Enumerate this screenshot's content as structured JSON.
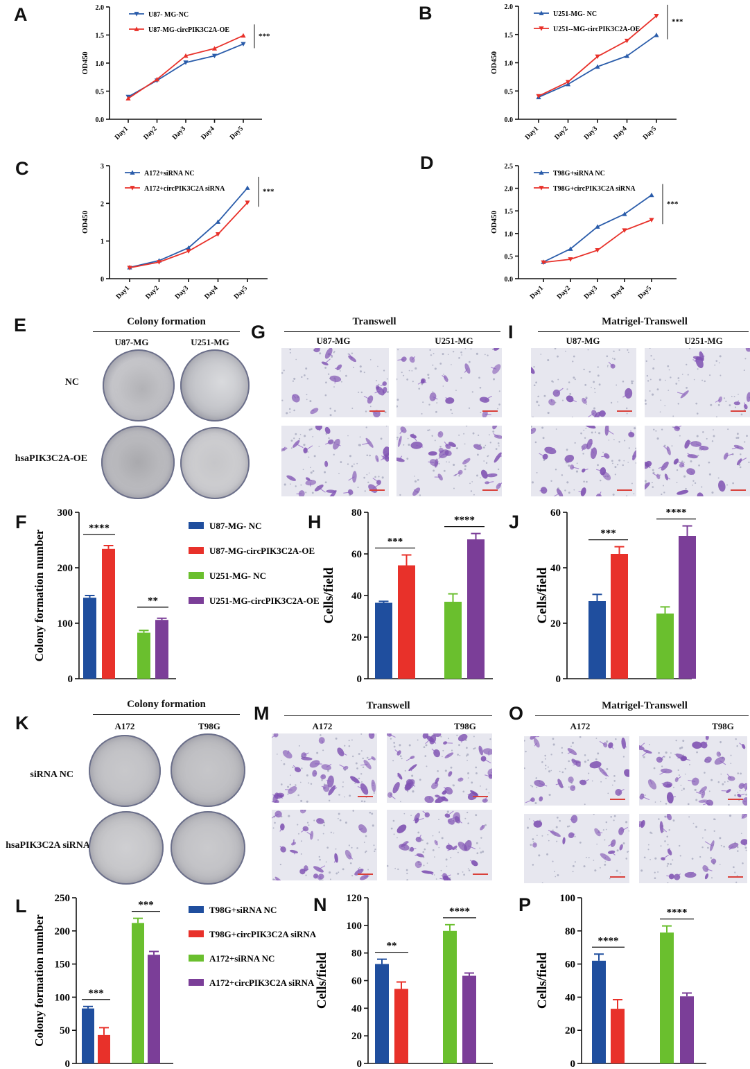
{
  "panel_letters": [
    "A",
    "B",
    "C",
    "D",
    "E",
    "F",
    "G",
    "H",
    "I",
    "J",
    "K",
    "L",
    "M",
    "N",
    "O",
    "P"
  ],
  "colors": {
    "blue": "#1f4e9e",
    "red": "#e8312a",
    "green": "#6abf2e",
    "purple": "#7b3e98",
    "line_blue": "#2a5caa",
    "line_red": "#e8312a",
    "dish": "#c4c4c8",
    "stain": "#7d4fb0"
  },
  "image_panels": {
    "E": {
      "title": "Colony formation",
      "cols": [
        "U87-MG",
        "U251-MG"
      ],
      "rows": [
        "NC",
        "hsaPIK3C2A-OE"
      ]
    },
    "G": {
      "title": "Transwell",
      "cols": [
        "U87-MG",
        "U251-MG"
      ]
    },
    "I": {
      "title": "Matrigel-Transwell",
      "cols": [
        "U87-MG",
        "U251-MG"
      ]
    },
    "K": {
      "title": "Colony formation",
      "cols": [
        "A172",
        "T98G"
      ],
      "rows": [
        "siRNA NC",
        "hsaPIK3C2A siRNA"
      ]
    },
    "M": {
      "title": "Transwell",
      "cols": [
        "A172",
        "T98G"
      ]
    },
    "O": {
      "title": "Matrigel-Transwell",
      "cols": [
        "A172",
        "T98G"
      ]
    }
  },
  "chart_data": [
    {
      "panel": "A",
      "type": "line",
      "x": [
        "Day1",
        "Day2",
        "Day3",
        "Day4",
        "Day5"
      ],
      "ylabel": "OD450",
      "ylim": [
        0,
        2.0
      ],
      "yticks": [
        "0.0",
        "0.5",
        "1.0",
        "1.5",
        "2.0"
      ],
      "significance": "***",
      "series": [
        {
          "name": "U87- MG-NC",
          "values": [
            0.4,
            0.69,
            1.01,
            1.13,
            1.34
          ],
          "color": "#2a5caa",
          "marker": "down"
        },
        {
          "name": "U87-MG-circPIK3C2A-OE",
          "values": [
            0.37,
            0.71,
            1.13,
            1.26,
            1.49
          ],
          "color": "#e8312a",
          "marker": "up"
        }
      ]
    },
    {
      "panel": "B",
      "type": "line",
      "x": [
        "Day1",
        "Day2",
        "Day3",
        "Day4",
        "Day5"
      ],
      "ylabel": "OD450",
      "ylim": [
        0,
        2.0
      ],
      "yticks": [
        "0.0",
        "0.5",
        "1.0",
        "1.5",
        "2.0"
      ],
      "significance": "***",
      "series": [
        {
          "name": "U251-MG- NC",
          "values": [
            0.39,
            0.62,
            0.93,
            1.12,
            1.49
          ],
          "color": "#2a5caa",
          "marker": "up"
        },
        {
          "name": "U251--MG-circPIK3C2A-OE",
          "values": [
            0.41,
            0.66,
            1.11,
            1.39,
            1.83
          ],
          "color": "#e8312a",
          "marker": "down"
        }
      ]
    },
    {
      "panel": "C",
      "type": "line",
      "x": [
        "Day1",
        "Day2",
        "Day3",
        "Day4",
        "Day5"
      ],
      "ylabel": "OD450",
      "ylim": [
        0,
        3
      ],
      "yticks": [
        "0",
        "1",
        "2",
        "3"
      ],
      "significance": "***",
      "series": [
        {
          "name": "A172+siRNA NC",
          "values": [
            0.3,
            0.48,
            0.82,
            1.51,
            2.41
          ],
          "color": "#2a5caa",
          "marker": "up"
        },
        {
          "name": "A172+circPIK3C2A siRNA",
          "values": [
            0.29,
            0.44,
            0.73,
            1.18,
            2.02
          ],
          "color": "#e8312a",
          "marker": "down"
        }
      ]
    },
    {
      "panel": "D",
      "type": "line",
      "x": [
        "Day1",
        "Day2",
        "Day3",
        "Day4",
        "Day5"
      ],
      "ylabel": "OD450",
      "ylim": [
        0,
        2.5
      ],
      "yticks": [
        "0.0",
        "0.5",
        "1.0",
        "1.5",
        "2.0",
        "2.5"
      ],
      "significance": "***",
      "series": [
        {
          "name": "T98G+siRNA NC",
          "values": [
            0.37,
            0.66,
            1.15,
            1.43,
            1.85
          ],
          "color": "#2a5caa",
          "marker": "up"
        },
        {
          "name": "T98G+circPIK3C2A siRNA",
          "values": [
            0.36,
            0.43,
            0.63,
            1.07,
            1.3
          ],
          "color": "#e8312a",
          "marker": "down"
        }
      ]
    },
    {
      "panel": "F",
      "type": "bar",
      "ylabel": "Colony formation number",
      "ylim": [
        0,
        300
      ],
      "yticks": [
        "0",
        "100",
        "200",
        "300"
      ],
      "values": [
        146,
        234,
        83,
        106
      ],
      "errors": [
        4,
        6,
        4,
        3
      ],
      "bar_colors": [
        "#1f4e9e",
        "#e8312a",
        "#6abf2e",
        "#7b3e98"
      ],
      "legend": [
        "U87-MG- NC",
        "U87-MG-circPIK3C2A-OE",
        "U251-MG- NC",
        "U251-MG-circPIK3C2A-OE"
      ],
      "significance": [
        {
          "pair": [
            0,
            1
          ],
          "label": "****"
        },
        {
          "pair": [
            2,
            3
          ],
          "label": "**"
        }
      ]
    },
    {
      "panel": "H",
      "type": "bar",
      "ylabel": "Cells/field",
      "ylim": [
        0,
        80
      ],
      "yticks": [
        "0",
        "20",
        "40",
        "60",
        "80"
      ],
      "values": [
        36.5,
        54.5,
        37,
        67
      ],
      "errors": [
        0.7,
        5,
        3.8,
        2.8
      ],
      "bar_colors": [
        "#1f4e9e",
        "#e8312a",
        "#6abf2e",
        "#7b3e98"
      ],
      "significance": [
        {
          "pair": [
            0,
            1
          ],
          "label": "***"
        },
        {
          "pair": [
            2,
            3
          ],
          "label": "****"
        }
      ]
    },
    {
      "panel": "J",
      "type": "bar",
      "ylabel": "Cells/field",
      "ylim": [
        0,
        60
      ],
      "yticks": [
        "0",
        "20",
        "40",
        "60"
      ],
      "values": [
        28,
        45,
        23.5,
        51.5
      ],
      "errors": [
        2.4,
        2.6,
        2.4,
        3.6
      ],
      "bar_colors": [
        "#1f4e9e",
        "#e8312a",
        "#6abf2e",
        "#7b3e98"
      ],
      "significance": [
        {
          "pair": [
            0,
            1
          ],
          "label": "***"
        },
        {
          "pair": [
            2,
            3
          ],
          "label": "****"
        }
      ]
    },
    {
      "panel": "L",
      "type": "bar",
      "ylabel": "Colony formation number",
      "ylim": [
        0,
        250
      ],
      "yticks": [
        "0",
        "50",
        "100",
        "150",
        "200",
        "250"
      ],
      "values": [
        83,
        43,
        212,
        164
      ],
      "errors": [
        3,
        11,
        7,
        5
      ],
      "bar_colors": [
        "#1f4e9e",
        "#e8312a",
        "#6abf2e",
        "#7b3e98"
      ],
      "legend": [
        "T98G+siRNA NC",
        "T98G+circPIK3C2A siRNA",
        "A172+siRNA NC",
        "A172+circPIK3C2A siRNA"
      ],
      "significance": [
        {
          "pair": [
            0,
            1
          ],
          "label": "***"
        },
        {
          "pair": [
            2,
            3
          ],
          "label": "***"
        }
      ]
    },
    {
      "panel": "N",
      "type": "bar",
      "ylabel": "Cells/field",
      "ylim": [
        0,
        120
      ],
      "yticks": [
        "0",
        "20",
        "40",
        "60",
        "80",
        "100",
        "120"
      ],
      "values": [
        72,
        54,
        96,
        63.5
      ],
      "errors": [
        3.5,
        5,
        4.5,
        2
      ],
      "bar_colors": [
        "#1f4e9e",
        "#e8312a",
        "#6abf2e",
        "#7b3e98"
      ],
      "significance": [
        {
          "pair": [
            0,
            1
          ],
          "label": "**"
        },
        {
          "pair": [
            2,
            3
          ],
          "label": "****"
        }
      ]
    },
    {
      "panel": "P",
      "type": "bar",
      "ylabel": "Cells/field",
      "ylim": [
        0,
        100
      ],
      "yticks": [
        "0",
        "20",
        "40",
        "60",
        "80",
        "100"
      ],
      "values": [
        62,
        33,
        79,
        40.5
      ],
      "errors": [
        4,
        5.5,
        4,
        2
      ],
      "bar_colors": [
        "#1f4e9e",
        "#e8312a",
        "#6abf2e",
        "#7b3e98"
      ],
      "significance": [
        {
          "pair": [
            0,
            1
          ],
          "label": "****"
        },
        {
          "pair": [
            2,
            3
          ],
          "label": "****"
        }
      ]
    }
  ]
}
